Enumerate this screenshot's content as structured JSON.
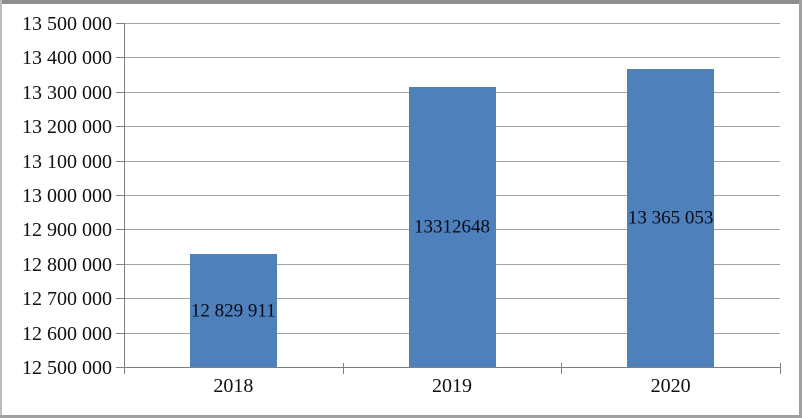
{
  "chart_data": {
    "type": "bar",
    "title": "",
    "xlabel": "",
    "ylabel": "",
    "categories": [
      "2018",
      "2019",
      "2020"
    ],
    "values": [
      12829911,
      13312648,
      13365053
    ],
    "data_labels": [
      "12 829 911",
      "13312648",
      "13 365 053"
    ],
    "ylim": [
      12500000,
      13500000
    ],
    "y_tick_values": [
      13500000,
      13400000,
      13300000,
      13200000,
      13100000,
      13000000,
      12900000,
      12800000,
      12700000,
      12600000,
      12500000
    ],
    "y_tick_labels": [
      "13 500 000",
      "13 400 000",
      "13 300 000",
      "13 200 000",
      "13 100 000",
      "13 000 000",
      "12 900 000",
      "12 800 000",
      "12 700 000",
      "12 600 000",
      "12 500 000"
    ],
    "grid": true,
    "legend": "none",
    "data_label_position": "inside-center"
  },
  "colors": {
    "bar_fill": "#4E80BC",
    "gridline": "#A3A3A3",
    "axis": "#7F7F7F",
    "text": "#111111",
    "background": "#FFFFFF"
  }
}
